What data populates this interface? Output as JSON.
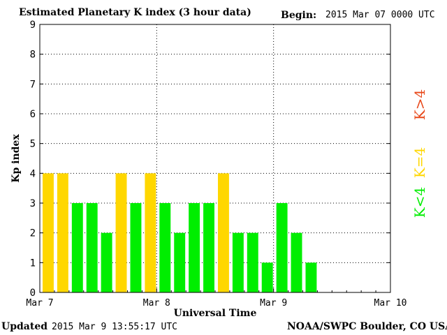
{
  "header": {
    "title": "Estimated Planetary K index (3 hour data)",
    "begin_label": "Begin:",
    "begin_value": "2015 Mar 07 0000 UTC"
  },
  "footer": {
    "updated_label": "Updated",
    "updated_value": "2015 Mar  9 13:55:17 UTC",
    "source": "NOAA/SWPC Boulder, CO USA"
  },
  "legend": [
    {
      "label": "K>4",
      "color": "#e8481a"
    },
    {
      "label": "K=4",
      "color": "#ffd700"
    },
    {
      "label": "K<4",
      "color": "#00ee00"
    }
  ],
  "chart_data": {
    "type": "bar",
    "title": "Estimated Planetary K index (3 hour data)",
    "xlabel": "Universal Time",
    "ylabel": "Kp index",
    "ylim": [
      0,
      9
    ],
    "yticks": [
      0,
      1,
      2,
      3,
      4,
      5,
      6,
      7,
      8,
      9
    ],
    "xticks": [
      "Mar 7",
      "Mar 8",
      "Mar 9",
      "Mar 10"
    ],
    "x_unit": "3-hour interval starting 2015 Mar 07 0000 UTC",
    "grid": true,
    "colors": {
      "below": "#00ee00",
      "equal": "#ffd700",
      "above": "#e8481a"
    },
    "values": [
      4,
      4,
      3,
      3,
      2,
      4,
      3,
      4,
      3,
      2,
      3,
      3,
      4,
      2,
      2,
      1,
      3,
      2,
      1
    ]
  }
}
